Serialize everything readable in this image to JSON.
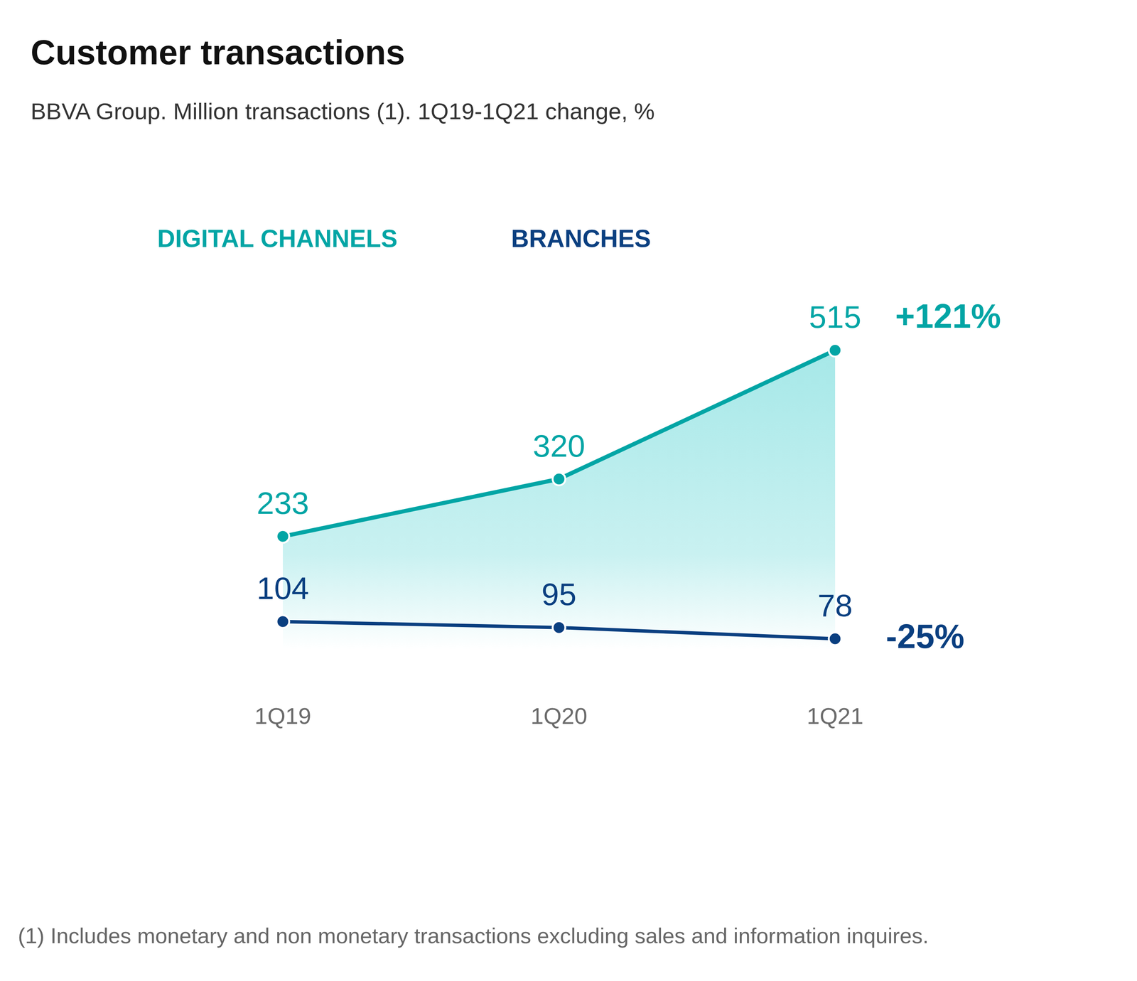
{
  "chart_data": {
    "type": "line",
    "title": "Customer transactions",
    "subtitle": "BBVA Group. Million transactions (1). 1Q19-1Q21 change, %",
    "footnote": "(1) Includes monetary and non monetary transactions excluding sales and information inquires.",
    "categories": [
      "1Q19",
      "1Q20",
      "1Q21"
    ],
    "series": [
      {
        "name": "DIGITAL CHANNELS",
        "type": "area",
        "color": "#02a5a5",
        "marker": "circle",
        "values": [
          233,
          320,
          515
        ],
        "change": "+121%"
      },
      {
        "name": "BRANCHES",
        "type": "line",
        "color": "#0a3f80",
        "marker": "circle",
        "values": [
          104,
          95,
          78
        ],
        "change": "-25%"
      }
    ],
    "ylim": [
      0,
      600
    ],
    "data_labels": true,
    "tick_labels": "x",
    "grid": false
  }
}
